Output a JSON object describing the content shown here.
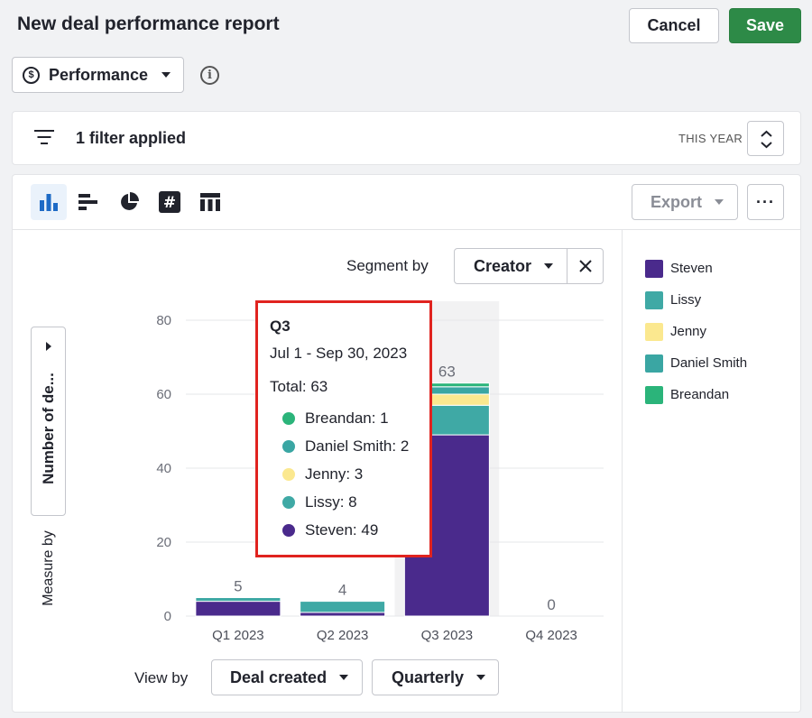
{
  "header": {
    "title": "New deal performance report",
    "cancel_label": "Cancel",
    "save_label": "Save"
  },
  "report_type": {
    "label": "Performance",
    "icon": "dollar-circle-icon"
  },
  "filters": {
    "summary": "1 filter applied",
    "period": "THIS YEAR"
  },
  "toolbar": {
    "chart_types": [
      "column-chart",
      "bar-chart",
      "pie-chart",
      "number-scorecard",
      "table"
    ],
    "active_chart_type": "column-chart",
    "export_label": "Export",
    "more_label": "···"
  },
  "segment": {
    "label": "Segment by",
    "value": "Creator"
  },
  "measure": {
    "value": "Number of de...",
    "label": "Measure by"
  },
  "view_by": {
    "label": "View by",
    "field": "Deal created",
    "interval": "Quarterly"
  },
  "legend": [
    {
      "name": "Steven",
      "color": "#4a2a8c"
    },
    {
      "name": "Lissy",
      "color": "#3fa9a5"
    },
    {
      "name": "Jenny",
      "color": "#fbe88f"
    },
    {
      "name": "Daniel Smith",
      "color": "#3aa6a3"
    },
    {
      "name": "Breandan",
      "color": "#2bb47a"
    }
  ],
  "tooltip": {
    "title": "Q3",
    "range": "Jul 1 - Sep 30, 2023",
    "total": "Total: 63",
    "rows": [
      {
        "label": "Breandan: 1",
        "color": "#2bb47a"
      },
      {
        "label": "Daniel Smith: 2",
        "color": "#3aa6a3"
      },
      {
        "label": "Jenny: 3",
        "color": "#fbe88f"
      },
      {
        "label": "Lissy: 8",
        "color": "#3fa9a5"
      },
      {
        "label": "Steven: 49",
        "color": "#4a2a8c"
      }
    ]
  },
  "chart_data": {
    "type": "bar",
    "stacked": true,
    "categories": [
      "Q1 2023",
      "Q2 2023",
      "Q3 2023",
      "Q4 2023"
    ],
    "series": [
      {
        "name": "Steven",
        "color": "#4a2a8c",
        "values": [
          4,
          1,
          49,
          0
        ]
      },
      {
        "name": "Lissy",
        "color": "#3fa9a5",
        "values": [
          1,
          3,
          8,
          0
        ]
      },
      {
        "name": "Jenny",
        "color": "#fbe88f",
        "values": [
          0,
          0,
          3,
          0
        ]
      },
      {
        "name": "Daniel Smith",
        "color": "#3aa6a3",
        "values": [
          0,
          0,
          2,
          0
        ]
      },
      {
        "name": "Breandan",
        "color": "#2bb47a",
        "values": [
          0,
          0,
          1,
          0
        ]
      }
    ],
    "totals": [
      5,
      4,
      63,
      0
    ],
    "yticks": [
      0,
      20,
      40,
      60,
      80
    ],
    "ylim": [
      0,
      80
    ],
    "highlighted_category": "Q3 2023",
    "grid": true,
    "legend_position": "right"
  }
}
